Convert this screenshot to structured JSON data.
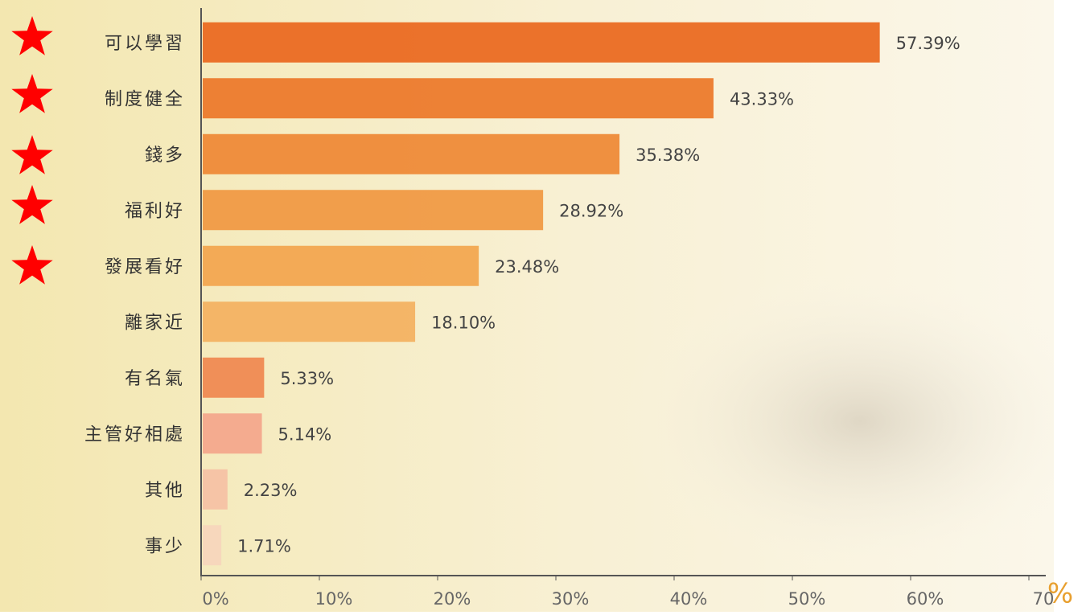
{
  "chart_data": {
    "type": "hbar",
    "categories": [
      "可以學習",
      "制度健全",
      "錢多",
      "福利好",
      "發展看好",
      "離家近",
      "有名氣",
      "主管好相處",
      "其他",
      "事少"
    ],
    "values": [
      57.39,
      43.33,
      35.38,
      28.92,
      23.48,
      18.1,
      5.33,
      5.14,
      2.23,
      1.71
    ],
    "value_labels": [
      "57.39%",
      "43.33%",
      "35.38%",
      "28.92%",
      "23.48%",
      "18.10%",
      "5.33%",
      "5.14%",
      "2.23%",
      "1.71%"
    ],
    "colors": [
      "#ea6a22",
      "#ec7a2c",
      "#ee8a38",
      "#f09a44",
      "#f2a650",
      "#f3b262",
      "#ef8a52",
      "#f3a88c",
      "#f5c2a4",
      "#f7d6bc"
    ],
    "xlim": [
      0,
      70
    ],
    "xticks": [
      {
        "value": 0,
        "label": "0%"
      },
      {
        "value": 10,
        "label": "10%"
      },
      {
        "value": 20,
        "label": "20%"
      },
      {
        "value": 30,
        "label": "30%"
      },
      {
        "value": 40,
        "label": "40%"
      },
      {
        "value": 50,
        "label": "50%"
      },
      {
        "value": 60,
        "label": "60%"
      },
      70
    ],
    "x_unit": "%"
  }
}
